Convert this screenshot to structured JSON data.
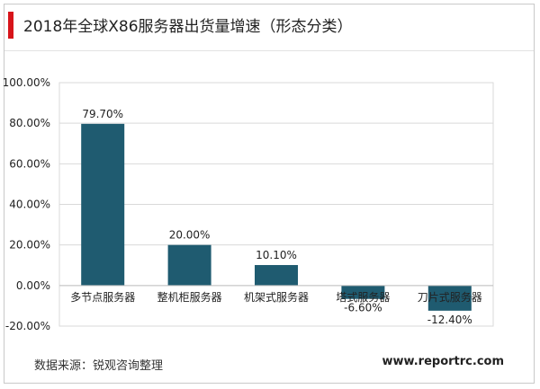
{
  "title": "2018年全球X86服务器出货量增速（形态分类）",
  "source": "数据来源：锐观咨询整理",
  "website": "www.reportrc.com",
  "colors": {
    "bar": "#1f5b70",
    "accent": "#d7141a",
    "grid": "#d9d9d9"
  },
  "chart_data": {
    "type": "bar",
    "categories": [
      "多节点服务器",
      "整机柜服务器",
      "机架式服务器",
      "塔式服务器",
      "刀片式服务器"
    ],
    "values": [
      79.7,
      20.0,
      10.1,
      -6.6,
      -12.4
    ],
    "value_labels": [
      "79.70%",
      "20.00%",
      "10.10%",
      "-6.60%",
      "-12.40%"
    ],
    "ylim": [
      -20,
      100
    ],
    "yticks": [
      -20,
      0,
      20,
      40,
      60,
      80,
      100
    ],
    "ytick_labels": [
      "-20.00%",
      "0.00%",
      "20.00%",
      "40.00%",
      "60.00%",
      "80.00%",
      "100.00%"
    ],
    "grid": true,
    "legend": false
  }
}
